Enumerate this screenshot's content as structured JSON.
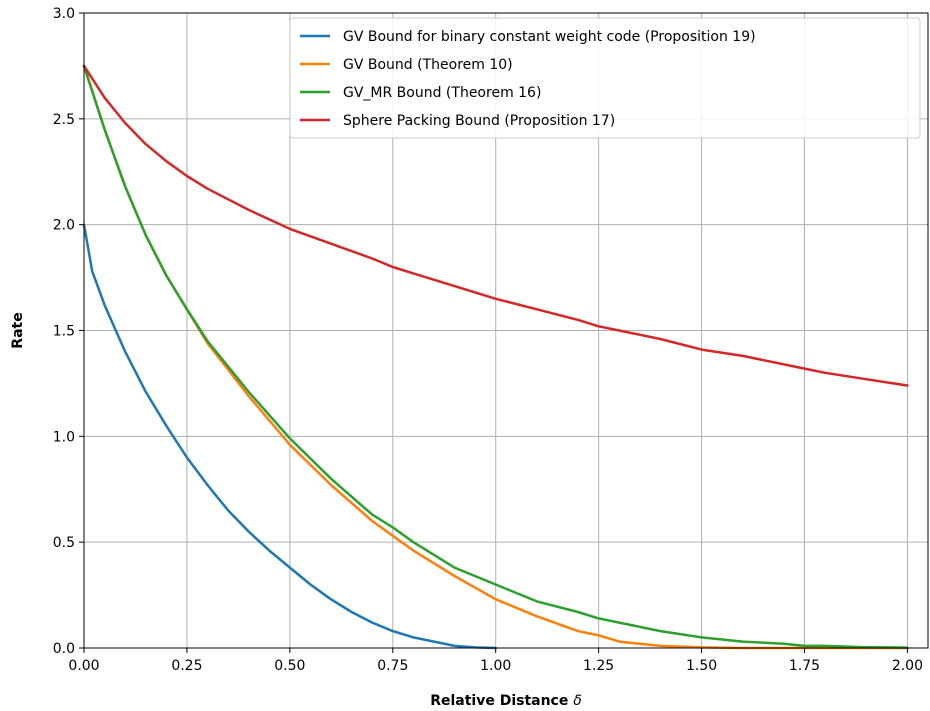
{
  "chart_data": {
    "type": "line",
    "title": "",
    "xlabel": "Relative Distance",
    "xlabel_symbol": "δ",
    "ylabel": "Rate",
    "xlim": [
      0,
      2.05
    ],
    "ylim": [
      0,
      3.0
    ],
    "xticks": [
      "0.00",
      "0.25",
      "0.50",
      "0.75",
      "1.00",
      "1.25",
      "1.50",
      "1.75",
      "2.00"
    ],
    "yticks": [
      "0.0",
      "0.5",
      "1.0",
      "1.5",
      "2.0",
      "2.5",
      "3.0"
    ],
    "grid": true,
    "legend_position": "top-right",
    "series": [
      {
        "name": "GV Bound for binary constant weight code (Proposition 19)",
        "color": "#1f77b4",
        "x": [
          0,
          0.02,
          0.05,
          0.1,
          0.15,
          0.2,
          0.25,
          0.3,
          0.35,
          0.4,
          0.45,
          0.5,
          0.55,
          0.6,
          0.65,
          0.7,
          0.75,
          0.8,
          0.85,
          0.9,
          0.95,
          1.0
        ],
        "y": [
          2.0,
          1.78,
          1.62,
          1.4,
          1.21,
          1.05,
          0.9,
          0.77,
          0.65,
          0.55,
          0.46,
          0.38,
          0.3,
          0.23,
          0.17,
          0.12,
          0.08,
          0.05,
          0.03,
          0.01,
          0.003,
          0.0
        ]
      },
      {
        "name": "GV Bound (Theorem 10)",
        "color": "#ff7f0e",
        "x": [
          0,
          0.05,
          0.1,
          0.15,
          0.2,
          0.25,
          0.3,
          0.4,
          0.5,
          0.6,
          0.7,
          0.75,
          0.8,
          0.9,
          1.0,
          1.1,
          1.2,
          1.25,
          1.3,
          1.4,
          1.5,
          1.6,
          1.7,
          1.75,
          1.8,
          1.9,
          2.0
        ],
        "y": [
          2.75,
          2.45,
          2.18,
          1.95,
          1.76,
          1.6,
          1.44,
          1.19,
          0.96,
          0.77,
          0.6,
          0.53,
          0.46,
          0.34,
          0.23,
          0.15,
          0.08,
          0.06,
          0.03,
          0.01,
          0.003,
          0.0,
          0.0,
          0.0,
          0.0,
          0.0,
          0.0
        ]
      },
      {
        "name": "GV_MR Bound (Theorem 16)",
        "color": "#2ca02c",
        "x": [
          0,
          0.05,
          0.1,
          0.15,
          0.2,
          0.25,
          0.3,
          0.4,
          0.5,
          0.6,
          0.7,
          0.75,
          0.8,
          0.9,
          1.0,
          1.1,
          1.2,
          1.25,
          1.3,
          1.4,
          1.5,
          1.6,
          1.7,
          1.75,
          1.8,
          1.9,
          2.0
        ],
        "y": [
          2.75,
          2.45,
          2.18,
          1.95,
          1.76,
          1.6,
          1.45,
          1.21,
          0.99,
          0.8,
          0.63,
          0.57,
          0.5,
          0.38,
          0.3,
          0.22,
          0.17,
          0.14,
          0.12,
          0.08,
          0.05,
          0.03,
          0.02,
          0.01,
          0.01,
          0.004,
          0.002
        ]
      },
      {
        "name": "Sphere Packing Bound (Proposition 17)",
        "color": "#d62728",
        "x": [
          0,
          0.02,
          0.05,
          0.1,
          0.15,
          0.2,
          0.25,
          0.3,
          0.4,
          0.5,
          0.6,
          0.7,
          0.75,
          0.8,
          0.9,
          1.0,
          1.1,
          1.2,
          1.25,
          1.3,
          1.4,
          1.5,
          1.6,
          1.7,
          1.75,
          1.8,
          1.9,
          2.0
        ],
        "y": [
          2.75,
          2.69,
          2.6,
          2.48,
          2.38,
          2.3,
          2.23,
          2.17,
          2.07,
          1.98,
          1.91,
          1.84,
          1.8,
          1.77,
          1.71,
          1.65,
          1.6,
          1.55,
          1.52,
          1.5,
          1.46,
          1.41,
          1.38,
          1.34,
          1.32,
          1.3,
          1.27,
          1.24
        ]
      }
    ]
  }
}
